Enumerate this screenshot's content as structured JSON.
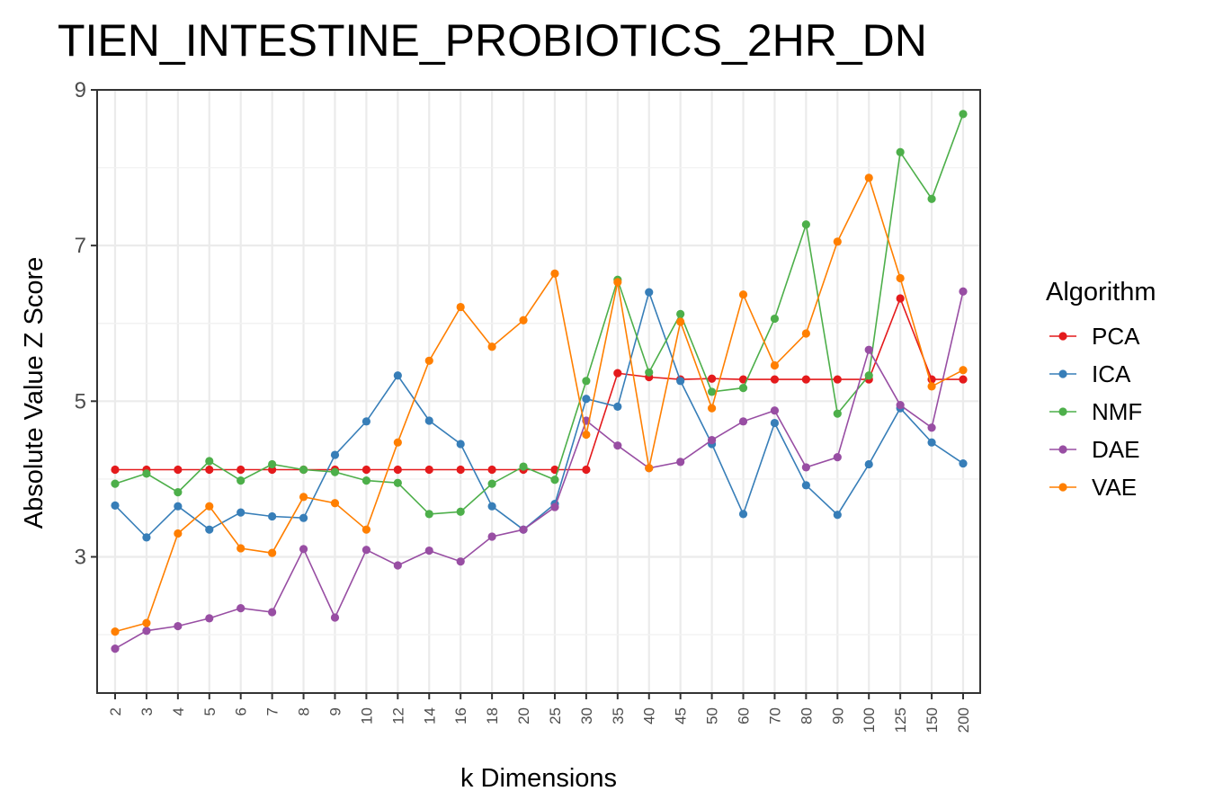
{
  "chart_data": {
    "type": "line",
    "title": "TIEN_INTESTINE_PROBIOTICS_2HR_DN",
    "xlabel": "k Dimensions",
    "ylabel": "Absolute Value Z Score",
    "categories": [
      "2",
      "3",
      "4",
      "5",
      "6",
      "7",
      "8",
      "9",
      "10",
      "12",
      "14",
      "16",
      "18",
      "20",
      "25",
      "30",
      "35",
      "40",
      "45",
      "50",
      "60",
      "70",
      "80",
      "90",
      "100",
      "125",
      "150",
      "200"
    ],
    "y_ticks": [
      "3",
      "5",
      "7",
      "9"
    ],
    "ylim": [
      1.25,
      9
    ],
    "grid": true,
    "legend": {
      "title": "Algorithm",
      "placement": "right"
    },
    "series": [
      {
        "name": "PCA",
        "color": "#E41A1C",
        "values": [
          4.12,
          4.12,
          4.12,
          4.12,
          4.12,
          4.12,
          4.12,
          4.12,
          4.12,
          4.12,
          4.12,
          4.12,
          4.12,
          4.12,
          4.12,
          4.12,
          5.36,
          5.31,
          5.28,
          5.29,
          5.28,
          5.28,
          5.28,
          5.28,
          5.28,
          6.32,
          5.28,
          5.28
        ]
      },
      {
        "name": "ICA",
        "color": "#377EB8",
        "values": [
          3.66,
          3.25,
          3.65,
          3.35,
          3.57,
          3.52,
          3.5,
          4.31,
          4.74,
          5.33,
          4.75,
          4.45,
          3.65,
          3.35,
          3.68,
          5.03,
          4.93,
          6.4,
          5.26,
          4.45,
          3.55,
          4.72,
          3.92,
          3.54,
          4.19,
          4.91,
          4.47,
          4.2
        ]
      },
      {
        "name": "NMF",
        "color": "#4DAF4A",
        "values": [
          3.94,
          4.07,
          3.83,
          4.23,
          3.98,
          4.19,
          4.12,
          4.09,
          3.98,
          3.95,
          3.55,
          3.58,
          3.94,
          4.16,
          3.99,
          5.26,
          6.56,
          5.37,
          6.12,
          5.12,
          5.17,
          6.06,
          7.27,
          4.84,
          5.33,
          8.2,
          7.6,
          8.69
        ]
      },
      {
        "name": "DAE",
        "color": "#984EA3",
        "values": [
          1.82,
          2.05,
          2.11,
          2.21,
          2.34,
          2.29,
          3.1,
          2.22,
          3.09,
          2.89,
          3.08,
          2.94,
          3.26,
          3.35,
          3.64,
          4.75,
          4.43,
          4.14,
          4.22,
          4.5,
          4.74,
          4.88,
          4.15,
          4.28,
          5.66,
          4.95,
          4.66,
          6.41
        ]
      },
      {
        "name": "VAE",
        "color": "#FF7F00",
        "values": [
          2.04,
          2.15,
          3.3,
          3.65,
          3.11,
          3.05,
          3.77,
          3.69,
          3.35,
          4.47,
          5.52,
          6.21,
          5.7,
          6.04,
          6.64,
          4.57,
          6.53,
          4.14,
          6.02,
          4.91,
          6.37,
          5.46,
          5.87,
          7.05,
          7.87,
          6.58,
          5.19,
          5.4
        ]
      }
    ]
  }
}
